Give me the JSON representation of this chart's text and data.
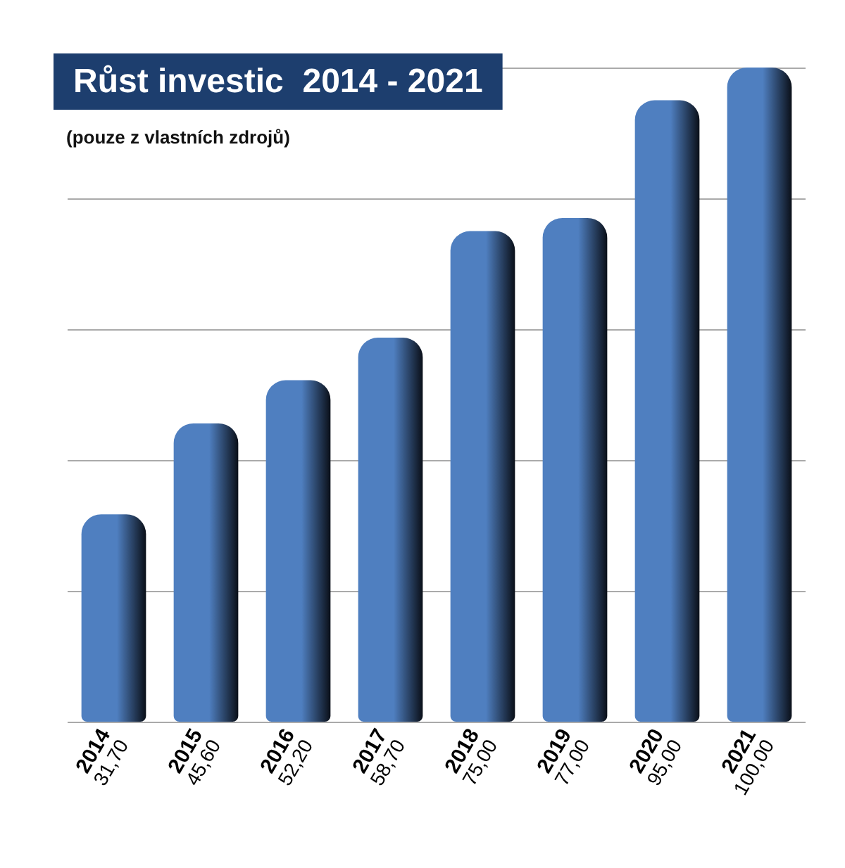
{
  "chart_data": {
    "type": "bar",
    "title": "Růst investic  2014 - 2021",
    "subtitle": "(pouze z vlastních zdrojů)",
    "categories": [
      "2014",
      "2015",
      "2016",
      "2017",
      "2018",
      "2019",
      "2020",
      "2021"
    ],
    "values": [
      31.7,
      45.6,
      52.2,
      58.7,
      75.0,
      77.0,
      95.0,
      100.0
    ],
    "value_labels": [
      "31,70",
      "45,60",
      "52,20",
      "58,70",
      "75,00",
      "77,00",
      "95,00",
      "100,00"
    ],
    "color": "#4f7fc0",
    "grid": "y"
  }
}
